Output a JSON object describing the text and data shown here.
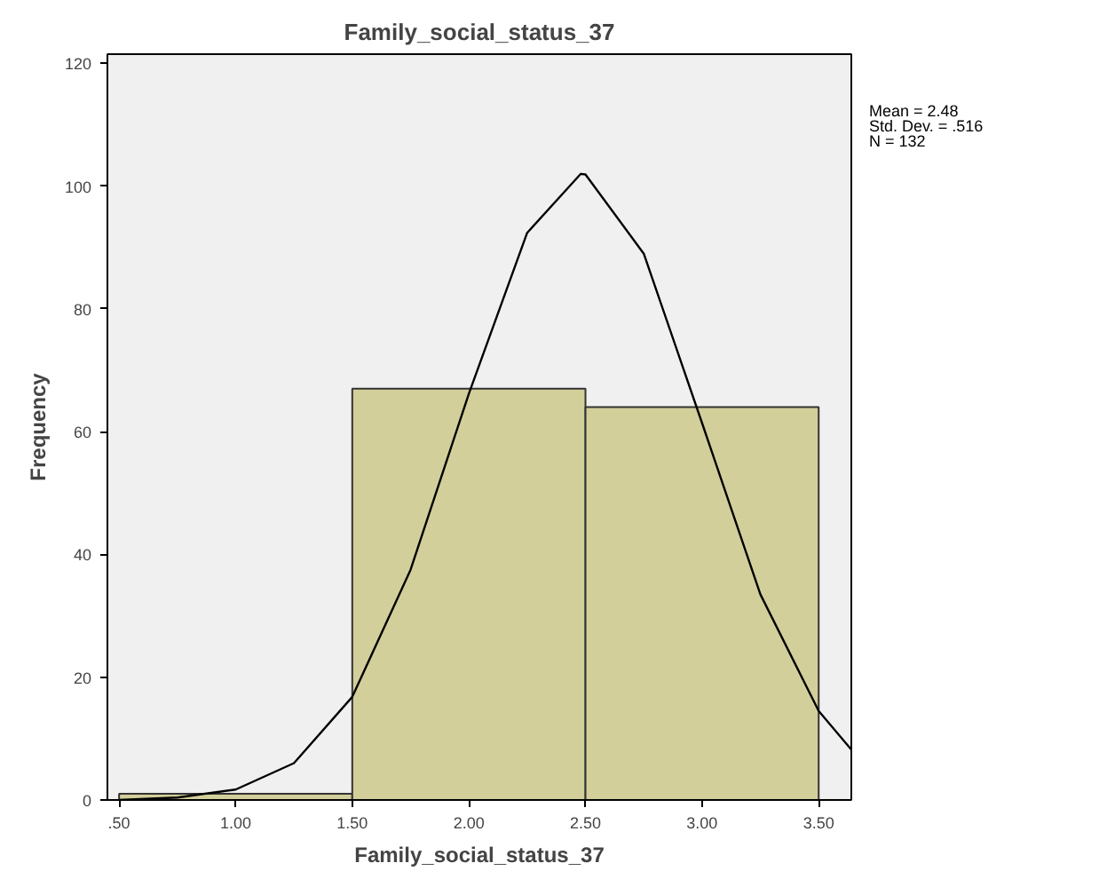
{
  "chart_data": {
    "type": "histogram",
    "title": "Family_social_status_37",
    "xlabel": "Family_social_status_37",
    "ylabel": "Frequency",
    "bins": [
      0.5,
      1.5,
      2.5,
      3.5
    ],
    "values": [
      1,
      67,
      64
    ],
    "color": "#d3cf9a",
    "series": [
      {
        "type": "line",
        "color": "#000000",
        "x": [
          0.5,
          0.75,
          1.0,
          1.25,
          1.5,
          1.75,
          2.0,
          2.25,
          2.48,
          2.5,
          2.75,
          3.0,
          3.25,
          3.5,
          3.64
        ],
        "values": [
          0,
          0.4,
          1.7,
          6,
          16.8,
          37.5,
          66.2,
          92.4,
          102,
          101.9,
          89,
          61.4,
          33.5,
          14.5,
          8.2
        ]
      }
    ],
    "xlim": [
      0.45,
      3.64
    ],
    "ylim": [
      0,
      121.5
    ],
    "xticks": [
      {
        "value": 0.5,
        "label": ".50"
      },
      {
        "value": 1.0,
        "label": "1.00"
      },
      {
        "value": 1.5,
        "label": "1.50"
      },
      {
        "value": 2.0,
        "label": "2.00"
      },
      {
        "value": 2.5,
        "label": "2.50"
      },
      {
        "value": 3.0,
        "label": "3.00"
      },
      {
        "value": 3.5,
        "label": "3.50"
      }
    ],
    "yticks": [
      0,
      20,
      40,
      60,
      80,
      100,
      120
    ],
    "annotations": [
      "Mean = 2.48",
      "Std. Dev. = .516",
      "N = 132"
    ],
    "grid": false
  }
}
